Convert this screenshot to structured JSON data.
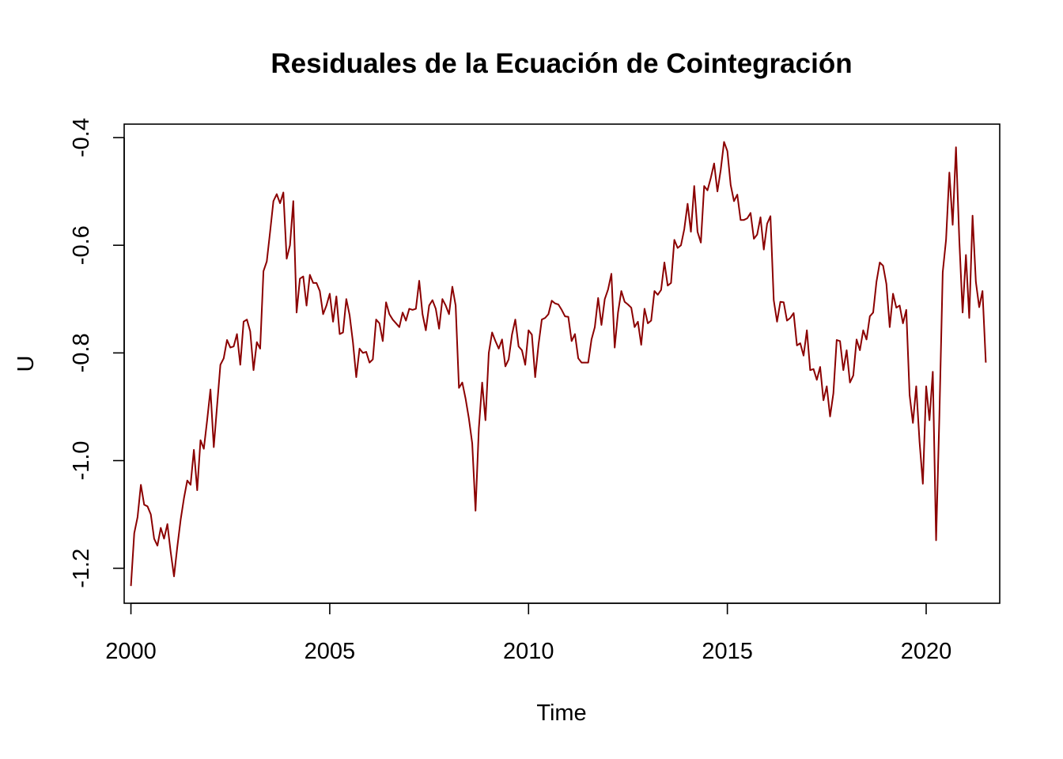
{
  "chart_data": {
    "type": "line",
    "title": "Residuales de la Ecuación de Cointegración",
    "xlabel": "Time",
    "ylabel": "U",
    "xlim": [
      1999.83,
      2021.85
    ],
    "ylim": [
      -1.265,
      -0.375
    ],
    "x_ticks": [
      2000,
      2005,
      2010,
      2015,
      2020
    ],
    "x_tick_labels": [
      "2000",
      "2005",
      "2010",
      "2015",
      "2020"
    ],
    "y_ticks": [
      -1.2,
      -1.0,
      -0.8,
      -0.6,
      -0.4
    ],
    "y_tick_labels": [
      "-1.2",
      "-1.0",
      "-0.8",
      "-0.6",
      "-0.4"
    ],
    "grid": false,
    "legend": "none",
    "line_color": "#8B0000",
    "series": [
      {
        "x_start": 2000.0,
        "step": 0.0833333,
        "values": [
          -1.233,
          -1.135,
          -1.105,
          -1.045,
          -1.082,
          -1.085,
          -1.1,
          -1.145,
          -1.158,
          -1.125,
          -1.145,
          -1.118,
          -1.17,
          -1.215,
          -1.16,
          -1.11,
          -1.07,
          -1.037,
          -1.045,
          -0.98,
          -1.055,
          -0.962,
          -0.978,
          -0.925,
          -0.868,
          -0.975,
          -0.898,
          -0.822,
          -0.81,
          -0.776,
          -0.79,
          -0.788,
          -0.765,
          -0.822,
          -0.742,
          -0.738,
          -0.76,
          -0.832,
          -0.78,
          -0.792,
          -0.648,
          -0.63,
          -0.575,
          -0.518,
          -0.505,
          -0.522,
          -0.502,
          -0.625,
          -0.6,
          -0.518,
          -0.725,
          -0.662,
          -0.658,
          -0.712,
          -0.655,
          -0.67,
          -0.67,
          -0.685,
          -0.728,
          -0.712,
          -0.69,
          -0.742,
          -0.695,
          -0.765,
          -0.762,
          -0.7,
          -0.73,
          -0.78,
          -0.845,
          -0.792,
          -0.8,
          -0.798,
          -0.818,
          -0.812,
          -0.738,
          -0.745,
          -0.778,
          -0.706,
          -0.728,
          -0.738,
          -0.745,
          -0.752,
          -0.725,
          -0.74,
          -0.718,
          -0.72,
          -0.718,
          -0.666,
          -0.728,
          -0.758,
          -0.712,
          -0.702,
          -0.718,
          -0.755,
          -0.7,
          -0.712,
          -0.728,
          -0.677,
          -0.712,
          -0.865,
          -0.855,
          -0.885,
          -0.922,
          -0.968,
          -1.093,
          -0.94,
          -0.855,
          -0.925,
          -0.8,
          -0.762,
          -0.778,
          -0.792,
          -0.775,
          -0.825,
          -0.812,
          -0.766,
          -0.738,
          -0.788,
          -0.795,
          -0.822,
          -0.758,
          -0.766,
          -0.845,
          -0.785,
          -0.738,
          -0.735,
          -0.728,
          -0.703,
          -0.708,
          -0.71,
          -0.72,
          -0.732,
          -0.733,
          -0.778,
          -0.765,
          -0.81,
          -0.818,
          -0.818,
          -0.818,
          -0.775,
          -0.752,
          -0.698,
          -0.748,
          -0.7,
          -0.682,
          -0.653,
          -0.79,
          -0.725,
          -0.685,
          -0.705,
          -0.71,
          -0.716,
          -0.752,
          -0.742,
          -0.785,
          -0.718,
          -0.745,
          -0.74,
          -0.685,
          -0.692,
          -0.683,
          -0.632,
          -0.675,
          -0.67,
          -0.59,
          -0.605,
          -0.6,
          -0.57,
          -0.523,
          -0.575,
          -0.49,
          -0.575,
          -0.595,
          -0.49,
          -0.498,
          -0.475,
          -0.448,
          -0.5,
          -0.46,
          -0.408,
          -0.425,
          -0.488,
          -0.518,
          -0.506,
          -0.553,
          -0.553,
          -0.55,
          -0.54,
          -0.588,
          -0.58,
          -0.548,
          -0.608,
          -0.56,
          -0.546,
          -0.702,
          -0.742,
          -0.705,
          -0.706,
          -0.74,
          -0.735,
          -0.726,
          -0.786,
          -0.782,
          -0.805,
          -0.758,
          -0.832,
          -0.83,
          -0.85,
          -0.826,
          -0.888,
          -0.862,
          -0.918,
          -0.875,
          -0.776,
          -0.778,
          -0.832,
          -0.795,
          -0.855,
          -0.842,
          -0.775,
          -0.795,
          -0.758,
          -0.775,
          -0.732,
          -0.725,
          -0.668,
          -0.632,
          -0.638,
          -0.672,
          -0.752,
          -0.69,
          -0.716,
          -0.712,
          -0.745,
          -0.72,
          -0.878,
          -0.93,
          -0.862,
          -0.965,
          -1.043,
          -0.862,
          -0.925,
          -0.835,
          -1.148,
          -0.915,
          -0.65,
          -0.59,
          -0.465,
          -0.562,
          -0.418,
          -0.59,
          -0.725,
          -0.618,
          -0.735,
          -0.545,
          -0.668,
          -0.715,
          -0.685,
          -0.818
        ]
      }
    ]
  }
}
